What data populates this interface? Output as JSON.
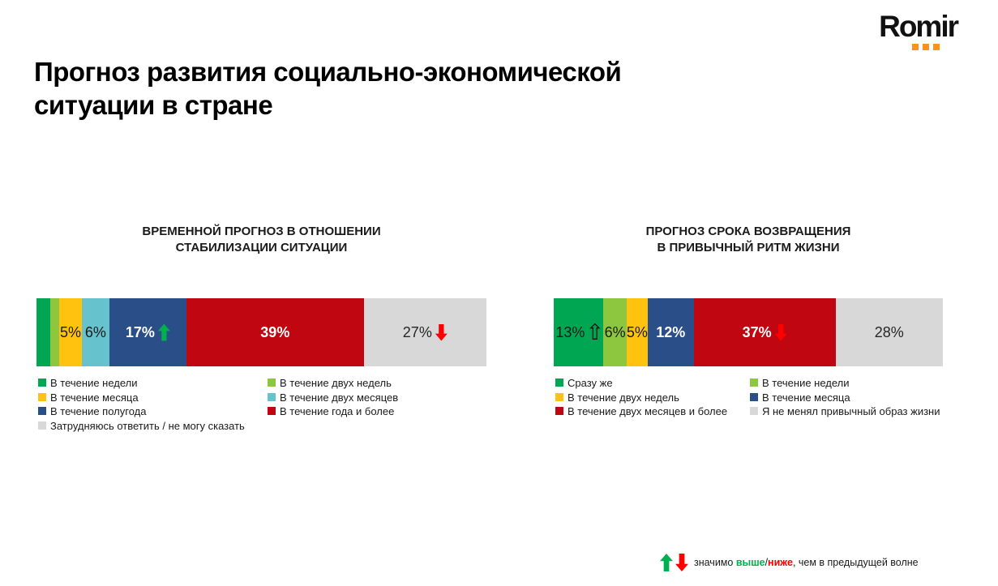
{
  "logo": {
    "text": "Romir",
    "dot_color": "#F7941E"
  },
  "title": "Прогноз развития социально-экономической\nситуации в стране",
  "arrow_colors": {
    "up_solid": "#00B050",
    "down_solid": "#FE0000"
  },
  "chart_data": [
    {
      "type": "bar",
      "stacked": true,
      "orientation": "horizontal",
      "units": "percent",
      "total": 100,
      "title": "ВРЕМЕННОЙ ПРОГНОЗ В ОТНОШЕНИИ\nСТАБИЛИЗАЦИИ СИТУАЦИИ",
      "categories": [
        "В течение недели",
        "В течение двух недель",
        "В течение месяца",
        "В течение двух месяцев",
        "В течение полугода",
        "В течение года и более",
        "Затрудняюсь ответить / не могу сказать"
      ],
      "values": [
        3,
        2,
        5,
        6,
        17,
        39,
        27
      ],
      "segments": [
        {
          "label": "В течение недели",
          "value": 3,
          "color": "#00A651",
          "value_label": "",
          "text_color": "#1a1a1a",
          "bold": false,
          "marker": null
        },
        {
          "label": "В течение двух недель",
          "value": 2,
          "color": "#8DC63F",
          "value_label": "",
          "text_color": "#1a1a1a",
          "bold": false,
          "marker": null
        },
        {
          "label": "В течение месяца",
          "value": 5,
          "color": "#FFC20E",
          "value_label": "5%",
          "text_color": "#1a1a1a",
          "bold": false,
          "marker": null
        },
        {
          "label": "В течение двух месяцев",
          "value": 6,
          "color": "#66C2CC",
          "value_label": "6%",
          "text_color": "#1a1a1a",
          "bold": false,
          "marker": null
        },
        {
          "label": "В течение полугода",
          "value": 17,
          "color": "#2A4E87",
          "value_label": "17%",
          "text_color": "#ffffff",
          "bold": true,
          "marker": "up-solid-green"
        },
        {
          "label": "В течение года и более",
          "value": 39,
          "color": "#C00610",
          "value_label": "39%",
          "text_color": "#ffffff",
          "bold": true,
          "marker": null
        },
        {
          "label": "Затрудняюсь ответить / не могу сказать",
          "value": 27,
          "color": "#D8D8D8",
          "value_label": "27%",
          "text_color": "#262626",
          "bold": false,
          "marker": "down-solid-red"
        }
      ],
      "legend_columns": [
        [
          {
            "label": "В течение недели",
            "color": "#00A651"
          },
          {
            "label": "В течение месяца",
            "color": "#FFC20E"
          },
          {
            "label": "В течение полугода",
            "color": "#2A4E87"
          },
          {
            "label": "Затрудняюсь ответить / не могу сказать",
            "color": "#D8D8D8"
          }
        ],
        [
          {
            "label": "В течение двух недель",
            "color": "#8DC63F"
          },
          {
            "label": "В течение двух месяцев",
            "color": "#66C2CC"
          },
          {
            "label": "В течение года и более",
            "color": "#C00610"
          }
        ]
      ]
    },
    {
      "type": "bar",
      "stacked": true,
      "orientation": "horizontal",
      "units": "percent",
      "total": 100,
      "title": "ПРОГНОЗ СРОКА ВОЗВРАЩЕНИЯ\nВ ПРИВЫЧНЫЙ РИТМ ЖИЗНИ",
      "categories": [
        "Сразу же",
        "В течение недели",
        "В течение двух недель",
        "В течение месяца",
        "В течение двух месяцев и более",
        "Я не менял привычный образ жизни"
      ],
      "values": [
        13,
        6,
        5,
        12,
        37,
        28
      ],
      "segments": [
        {
          "label": "Сразу же",
          "value": 13,
          "color": "#00A651",
          "value_label": "13%",
          "text_color": "#1a1a1a",
          "bold": false,
          "marker": "up-hollow-black"
        },
        {
          "label": "В течение недели",
          "value": 6,
          "color": "#8DC63F",
          "value_label": "6%",
          "text_color": "#1a1a1a",
          "bold": false,
          "marker": null
        },
        {
          "label": "В течение двух недель",
          "value": 5,
          "color": "#FFC20E",
          "value_label": "5%",
          "text_color": "#1a1a1a",
          "bold": false,
          "marker": null
        },
        {
          "label": "В течение месяца",
          "value": 12,
          "color": "#2A4E87",
          "value_label": "12%",
          "text_color": "#ffffff",
          "bold": true,
          "marker": null
        },
        {
          "label": "В течение двух месяцев и более",
          "value": 37,
          "color": "#C00610",
          "value_label": "37%",
          "text_color": "#ffffff",
          "bold": true,
          "marker": "down-solid-red"
        },
        {
          "label": "Я не менял привычный образ жизни",
          "value": 28,
          "color": "#D8D8D8",
          "value_label": "28%",
          "text_color": "#262626",
          "bold": false,
          "marker": null
        }
      ],
      "legend_columns": [
        [
          {
            "label": "Сразу же",
            "color": "#00A651"
          },
          {
            "label": "В течение двух недель",
            "color": "#FFC20E"
          },
          {
            "label": "В течение двух месяцев и более",
            "color": "#C00610"
          }
        ],
        [
          {
            "label": "В течение недели",
            "color": "#8DC63F"
          },
          {
            "label": "В течение месяца",
            "color": "#2A4E87"
          },
          {
            "label": "Я не менял привычный образ жизни",
            "color": "#D8D8D8"
          }
        ]
      ]
    }
  ],
  "footnote": {
    "prefix": "значимо ",
    "higher": "выше",
    "slash": "/",
    "lower": "ниже",
    "suffix": ", чем в предыдущей волне",
    "higher_color": "#00B050",
    "lower_color": "#FE0000"
  }
}
